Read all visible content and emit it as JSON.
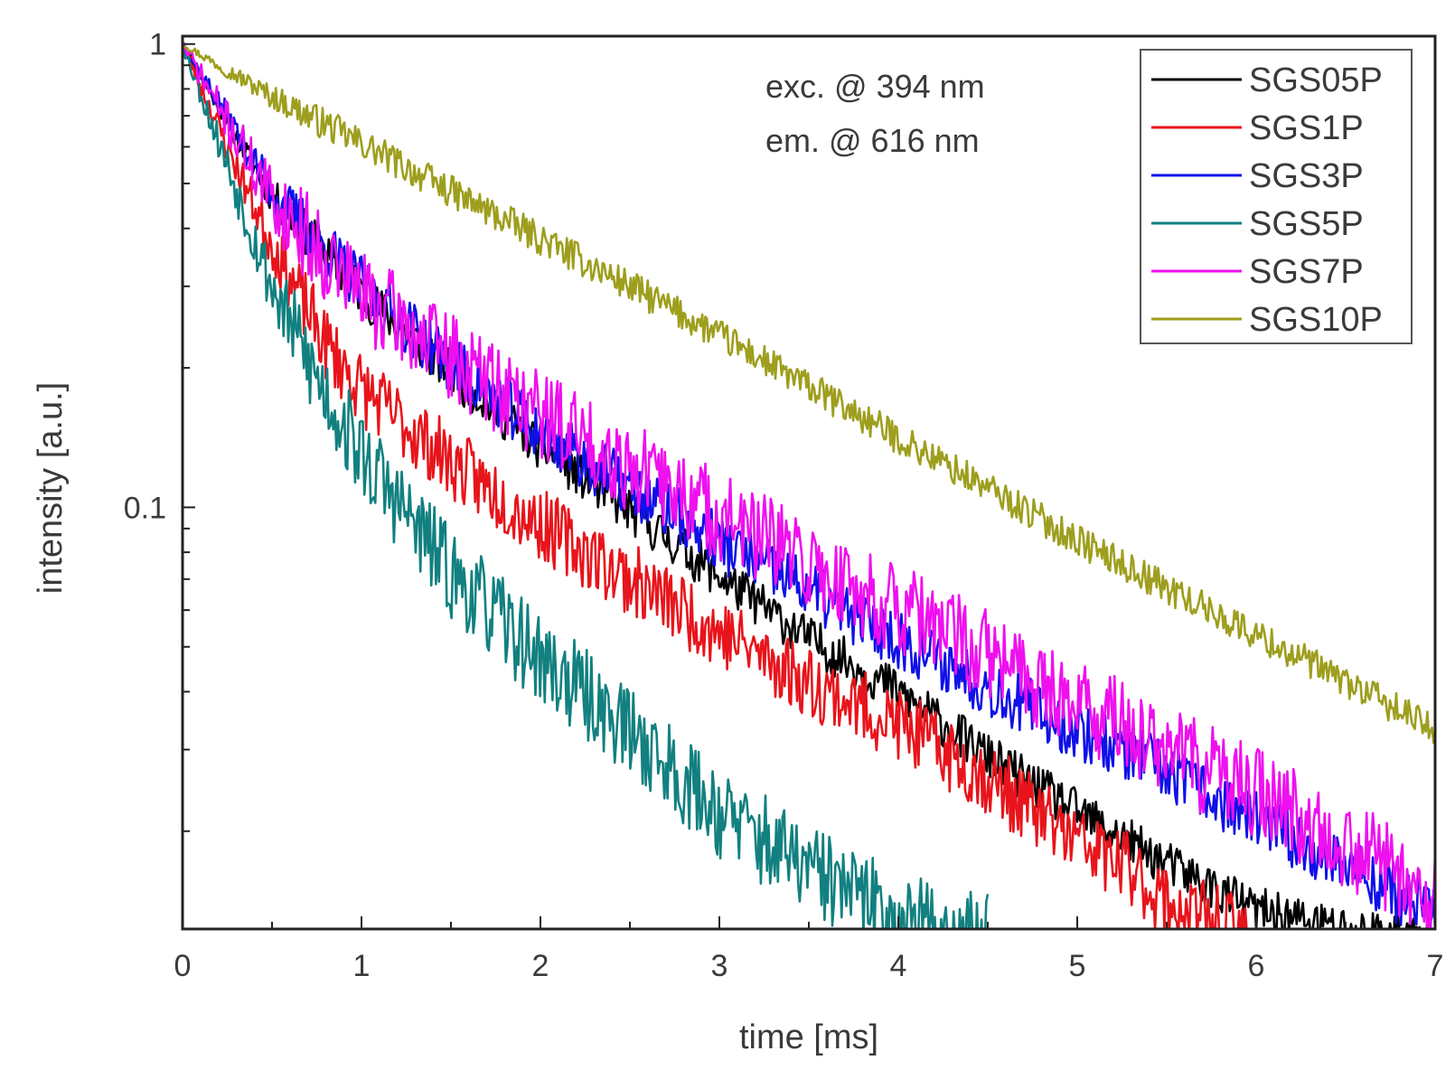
{
  "chart_data": {
    "type": "line",
    "yscale": "log",
    "xlabel": "time [ms]",
    "ylabel": "intensity [a.u.]",
    "xlim": [
      0,
      7
    ],
    "ylim": [
      0.0123,
      1.04
    ],
    "x_ticks": [
      0,
      1,
      2,
      3,
      4,
      5,
      6,
      7
    ],
    "x_tick_labels": [
      "0",
      "1",
      "2",
      "3",
      "4",
      "5",
      "6",
      "7"
    ],
    "y_ticks": [
      1,
      0.1
    ],
    "y_tick_labels": [
      "1",
      "0.1"
    ],
    "annotations": [
      "exc. @ 394 nm",
      "em. @ 616 nm"
    ],
    "legend_position": "top-right",
    "series": [
      {
        "name": "SGS05P",
        "color": "#000000",
        "x": [
          0,
          0.25,
          0.5,
          1,
          1.5,
          2,
          2.5,
          3,
          3.5,
          4,
          4.5,
          5,
          5.5,
          6,
          6.5,
          7
        ],
        "y": [
          1.0,
          0.68,
          0.47,
          0.29,
          0.195,
          0.135,
          0.098,
          0.071,
          0.052,
          0.04,
          0.029,
          0.022,
          0.017,
          0.0135,
          0.0123,
          0.0118
        ],
        "noise": 0.05,
        "seed": 11
      },
      {
        "name": "SGS1P",
        "color": "#e8141b",
        "x": [
          0,
          0.25,
          0.5,
          0.8,
          1,
          1.5,
          2,
          2.5,
          3,
          3.5,
          4,
          4.5,
          5,
          5.3,
          5.5,
          6
        ],
        "y": [
          1.0,
          0.6,
          0.37,
          0.225,
          0.18,
          0.125,
          0.092,
          0.07,
          0.054,
          0.042,
          0.034,
          0.026,
          0.019,
          0.0165,
          0.014,
          0.0118
        ],
        "noise": 0.08,
        "seed": 23
      },
      {
        "name": "SGS3P",
        "color": "#1010e8",
        "x": [
          0,
          0.25,
          0.5,
          1,
          1.5,
          2,
          2.5,
          3,
          3.5,
          4,
          4.5,
          5,
          5.5,
          6,
          6.5,
          7
        ],
        "y": [
          1.0,
          0.7,
          0.48,
          0.3,
          0.205,
          0.145,
          0.11,
          0.084,
          0.066,
          0.052,
          0.041,
          0.033,
          0.027,
          0.021,
          0.017,
          0.0132
        ],
        "noise": 0.065,
        "seed": 37
      },
      {
        "name": "SGS5P",
        "color": "#128080",
        "x": [
          0,
          0.25,
          0.5,
          0.75,
          1,
          1.5,
          2,
          2.5,
          3,
          3.5,
          4,
          4.5
        ],
        "y": [
          1.0,
          0.55,
          0.3,
          0.19,
          0.13,
          0.072,
          0.047,
          0.033,
          0.022,
          0.0165,
          0.013,
          0.0118
        ],
        "noise": 0.1,
        "seed": 53
      },
      {
        "name": "SGS7P",
        "color": "#ef10ef",
        "x": [
          0,
          0.25,
          0.5,
          1,
          1.5,
          2,
          2.5,
          3,
          3.5,
          4,
          4.5,
          5,
          5.5,
          6,
          6.5,
          7
        ],
        "y": [
          1.0,
          0.68,
          0.46,
          0.29,
          0.21,
          0.16,
          0.123,
          0.096,
          0.075,
          0.06,
          0.048,
          0.038,
          0.03,
          0.024,
          0.019,
          0.0145
        ],
        "noise": 0.1,
        "seed": 71
      },
      {
        "name": "SGS10P",
        "color": "#9e9e1e",
        "x": [
          0,
          0.5,
          1,
          1.5,
          2,
          2.5,
          3,
          3.5,
          4,
          4.5,
          5,
          5.5,
          6,
          6.5,
          7
        ],
        "y": [
          1.0,
          0.77,
          0.61,
          0.48,
          0.38,
          0.3,
          0.235,
          0.182,
          0.141,
          0.11,
          0.085,
          0.067,
          0.053,
          0.042,
          0.033
        ],
        "noise": 0.035,
        "seed": 97
      }
    ]
  }
}
